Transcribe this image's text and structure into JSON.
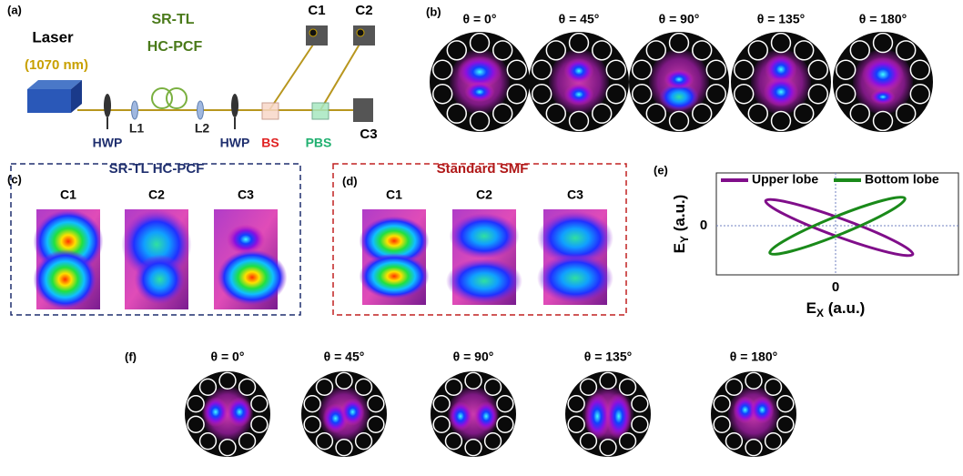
{
  "panels": {
    "a": {
      "label": "(a)",
      "laser": "Laser",
      "wavelength": "(1070 nm)",
      "fiber_line_1": "SR-TL",
      "fiber_line_2": "HC-PCF",
      "hwp_1": "HWP",
      "lens_1": "L1",
      "lens_2": "L2",
      "hwp_2": "HWP",
      "bs": "BS",
      "pbs": "PBS",
      "camera_1": "C1",
      "camera_2": "C2",
      "camera_3": "C3"
    },
    "b": {
      "label": "(b)",
      "angles": [
        "θ = 0°",
        "θ = 45°",
        "θ = 90°",
        "θ = 135°",
        "θ = 180°"
      ]
    },
    "c": {
      "label": "(c)",
      "title": "SR-TL HC-PCF",
      "cameras": [
        "C1",
        "C2",
        "C3"
      ]
    },
    "d": {
      "label": "(d)",
      "title": "Standard SMF",
      "cameras": [
        "C1",
        "C2",
        "C3"
      ]
    },
    "e": {
      "label": "(e)",
      "legend": [
        "Upper lobe",
        "Bottom lobe"
      ],
      "x_tick": "0",
      "y_tick": "0",
      "x_label": {
        "main": "E",
        "sub": "X",
        "unit": " (a.u.)"
      },
      "y_label": {
        "main": "E",
        "sub": "Y",
        "unit": " (a.u.)"
      }
    },
    "f": {
      "label": "(f)",
      "angles": [
        "θ = 0°",
        "θ = 45°",
        "θ = 90°",
        "θ = 135°",
        "θ = 180°"
      ]
    }
  }
}
